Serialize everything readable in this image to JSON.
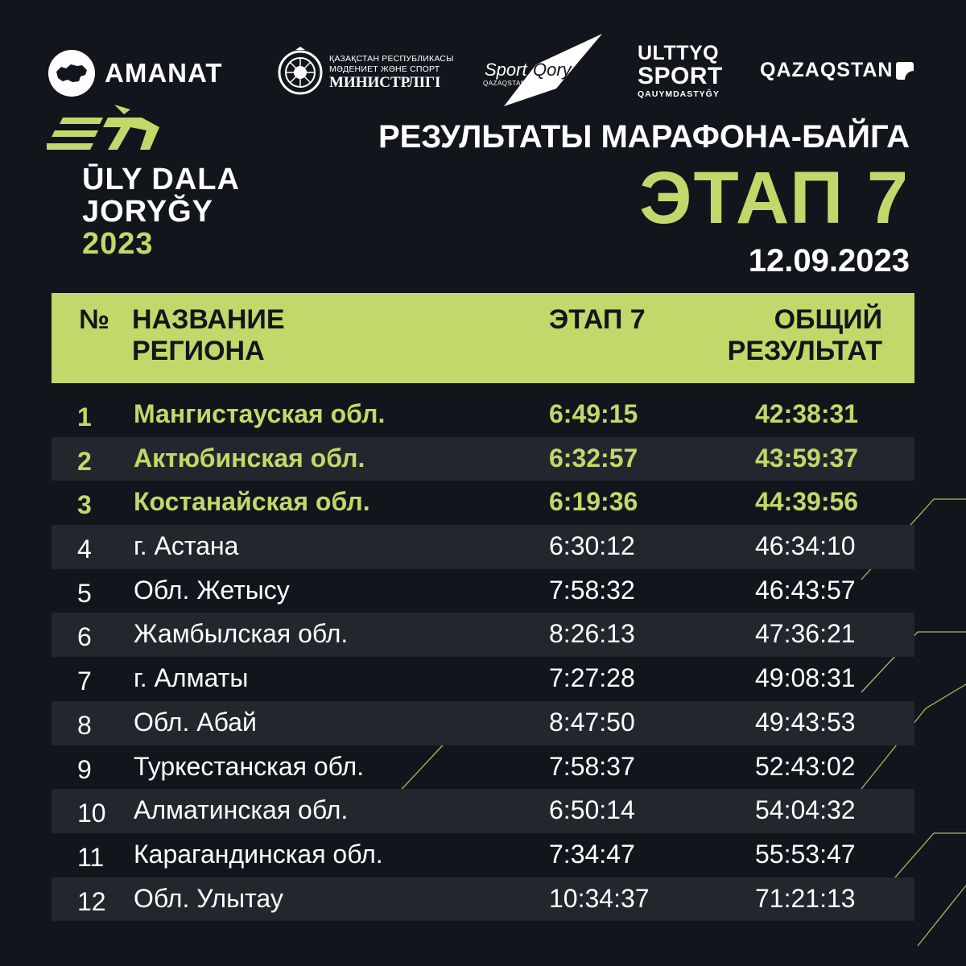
{
  "colors": {
    "background": "#12161c",
    "accent": "#c2d86a",
    "row_alt": "#23272d",
    "text": "#ffffff"
  },
  "sponsors": {
    "amanat": {
      "icon": "kazakhstan-map-icon",
      "name": "AMANAT"
    },
    "ministry": {
      "icon": "state-emblem-icon",
      "line1": "ҚАЗАҚСТАН РЕСПУБЛИКАСЫ",
      "line2": "МӘДЕНИЕТ ЖӘНЕ СПОРТ",
      "line3": "МИНИСТРЛІГІ"
    },
    "sportqory": {
      "name_sport": "Sport",
      "name_qory": "Qory",
      "sub": "QAZAQSTAN"
    },
    "ulttyq": {
      "line1": "ULTTYQ",
      "line2": "SPORT",
      "line3": "QAUYMDASTYĞY"
    },
    "qazaqstan": {
      "name": "QAZAQSTAN"
    }
  },
  "event": {
    "line1": "ŪLY DALA",
    "line2": "JORYĞY",
    "year": "2023"
  },
  "heading": {
    "title": "РЕЗУЛЬТАТЫ МАРАФОНА-БАЙГА",
    "stage": "ЭТАП 7",
    "date": "12.09.2023"
  },
  "table": {
    "headers": {
      "num": "№",
      "name_1": "НАЗВАНИЕ",
      "name_2": "РЕГИОНА",
      "stage": "ЭТАП 7",
      "total_1": "ОБЩИЙ",
      "total_2": "РЕЗУЛЬТАТ"
    },
    "rows": [
      {
        "num": "1",
        "region": "Мангистауская обл.",
        "stage": "6:49:15",
        "total": "42:38:31"
      },
      {
        "num": "2",
        "region": "Актюбинская обл.",
        "stage": "6:32:57",
        "total": "43:59:37"
      },
      {
        "num": "3",
        "region": "Костанайская обл.",
        "stage": "6:19:36",
        "total": "44:39:56"
      },
      {
        "num": "4",
        "region": "г. Астана",
        "stage": "6:30:12",
        "total": "46:34:10"
      },
      {
        "num": "5",
        "region": "Обл. Жетысу",
        "stage": "7:58:32",
        "total": "46:43:57"
      },
      {
        "num": "6",
        "region": "Жамбылская обл.",
        "stage": "8:26:13",
        "total": "47:36:21"
      },
      {
        "num": "7",
        "region": "г. Алматы",
        "stage": "7:27:28",
        "total": "49:08:31"
      },
      {
        "num": "8",
        "region": "Обл. Абай",
        "stage": "8:47:50",
        "total": "49:43:53"
      },
      {
        "num": "9",
        "region": "Туркестанская обл.",
        "stage": "7:58:37",
        "total": "52:43:02"
      },
      {
        "num": "10",
        "region": "Алматинская обл.",
        "stage": "6:50:14",
        "total": "54:04:32"
      },
      {
        "num": "11",
        "region": "Карагандинская обл.",
        "stage": "7:34:47",
        "total": "55:53:47"
      },
      {
        "num": "12",
        "region": "Обл. Улытау",
        "stage": "10:34:37",
        "total": "71:21:13"
      }
    ]
  }
}
